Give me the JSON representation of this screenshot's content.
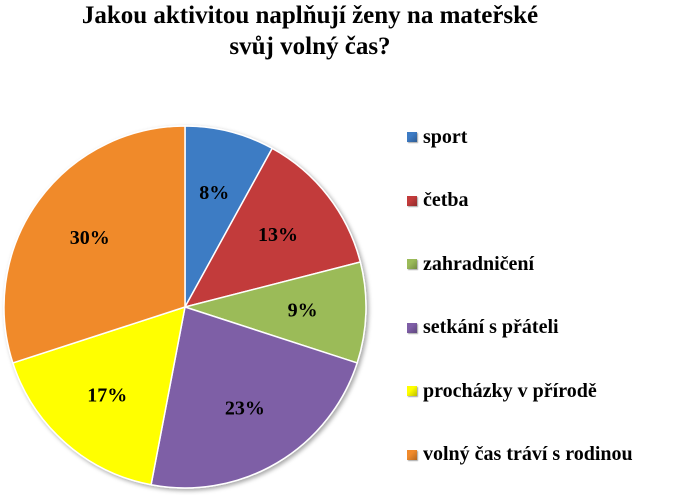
{
  "chart_data": {
    "type": "pie",
    "title_lines": [
      "Jakou aktivitou naplňují ženy na mateřské",
      "svůj volný čas?"
    ],
    "slices": [
      {
        "label": "sport",
        "value": 8,
        "display": "8%",
        "color": "#3d7bc4"
      },
      {
        "label": "četba",
        "value": 13,
        "display": "13%",
        "color": "#c23b3b"
      },
      {
        "label": "zahradničení",
        "value": 9,
        "display": "9%",
        "color": "#9bbb59"
      },
      {
        "label": "setkání s přáteli",
        "value": 23,
        "display": "23%",
        "color": "#7e5ea6"
      },
      {
        "label": "procházky v přírodě",
        "value": 17,
        "display": "17%",
        "color": "#ffff00"
      },
      {
        "label": " volný čas tráví s rodinou",
        "value": 30,
        "display": "30%",
        "color": "#f08a2c"
      }
    ],
    "legend_position": "right"
  }
}
